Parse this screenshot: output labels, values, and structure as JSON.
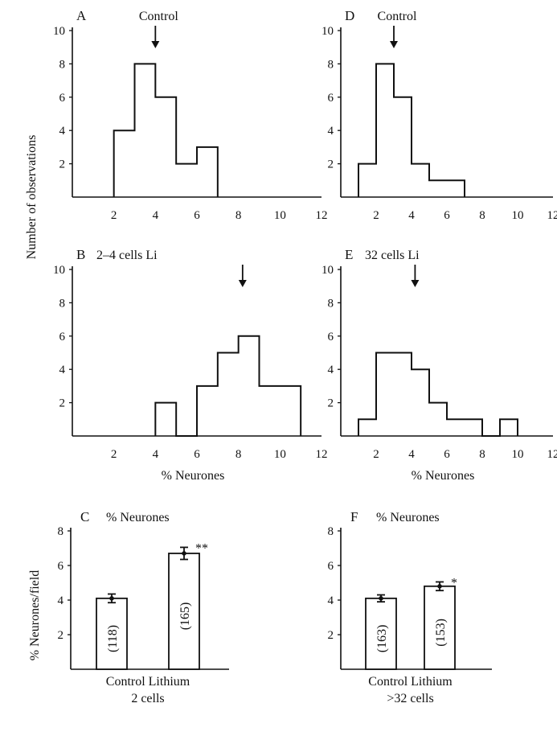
{
  "shared": {
    "hist_ylabel": "Number of observations",
    "bar_ylabel": "% Neurones/field"
  },
  "chart_data": [
    {
      "id": "A",
      "type": "histogram",
      "letter": "A",
      "title": "Control",
      "xlabel": "",
      "ylabel": "Number of observations",
      "xlim": [
        0,
        12
      ],
      "ylim": [
        0,
        10
      ],
      "xticks": [
        2,
        4,
        6,
        8,
        10,
        12
      ],
      "yticks": [
        2,
        4,
        6,
        8,
        10
      ],
      "bins": [
        [
          2,
          3,
          4
        ],
        [
          3,
          4,
          8
        ],
        [
          4,
          5,
          6
        ],
        [
          5,
          6,
          2
        ],
        [
          6,
          7,
          3
        ]
      ],
      "arrow_x": 4
    },
    {
      "id": "B",
      "type": "histogram",
      "letter": "B",
      "title": "2–4 cells Li",
      "xlabel": "% Neurones",
      "ylabel": "",
      "xlim": [
        0,
        12
      ],
      "ylim": [
        0,
        10
      ],
      "xticks": [
        2,
        4,
        6,
        8,
        10,
        12
      ],
      "yticks": [
        2,
        4,
        6,
        8,
        10
      ],
      "bins": [
        [
          4,
          5,
          2
        ],
        [
          5,
          6,
          0
        ],
        [
          6,
          7,
          3
        ],
        [
          7,
          8,
          5
        ],
        [
          8,
          9,
          6
        ],
        [
          9,
          11,
          3
        ]
      ],
      "arrow_x": 8.2
    },
    {
      "id": "D",
      "type": "histogram",
      "letter": "D",
      "title": "Control",
      "xlabel": "",
      "ylabel": "",
      "xlim": [
        0,
        12
      ],
      "ylim": [
        0,
        10
      ],
      "xticks": [
        2,
        4,
        6,
        8,
        10,
        12
      ],
      "yticks": [
        2,
        4,
        6,
        8,
        10
      ],
      "bins": [
        [
          1,
          2,
          2
        ],
        [
          2,
          3,
          8
        ],
        [
          3,
          4,
          6
        ],
        [
          4,
          5,
          2
        ],
        [
          5,
          7,
          1
        ]
      ],
      "arrow_x": 3
    },
    {
      "id": "E",
      "type": "histogram",
      "letter": "E",
      "title": "32 cells Li",
      "xlabel": "% Neurones",
      "ylabel": "",
      "xlim": [
        0,
        12
      ],
      "ylim": [
        0,
        10
      ],
      "xticks": [
        2,
        4,
        6,
        8,
        10,
        12
      ],
      "yticks": [
        2,
        4,
        6,
        8,
        10
      ],
      "bins": [
        [
          1,
          2,
          1
        ],
        [
          2,
          4,
          5
        ],
        [
          4,
          5,
          4
        ],
        [
          5,
          6,
          2
        ],
        [
          6,
          8,
          1
        ],
        [
          8,
          9,
          0
        ],
        [
          9,
          10,
          1
        ]
      ],
      "arrow_x": 4.2
    },
    {
      "id": "C",
      "type": "bar",
      "letter": "C",
      "title": "% Neurones",
      "ylabel": "% Neurones/field",
      "ylim": [
        0,
        8
      ],
      "yticks": [
        2,
        4,
        6,
        8
      ],
      "categories": [
        "Control",
        "Lithium"
      ],
      "values": [
        4.1,
        6.7
      ],
      "errors": [
        0.25,
        0.35
      ],
      "n_labels": [
        "(118)",
        "(165)"
      ],
      "significance": [
        "",
        "**"
      ],
      "xlabel_line1": "Control Lithium",
      "xlabel_line2": "2 cells"
    },
    {
      "id": "F",
      "type": "bar",
      "letter": "F",
      "title": "% Neurones",
      "ylabel": "",
      "ylim": [
        0,
        8
      ],
      "yticks": [
        2,
        4,
        6,
        8
      ],
      "categories": [
        "Control",
        "Lithium"
      ],
      "values": [
        4.1,
        4.8
      ],
      "errors": [
        0.2,
        0.25
      ],
      "n_labels": [
        "(163)",
        "(153)"
      ],
      "significance": [
        "",
        "*"
      ],
      "xlabel_line1": "Control Lithium",
      "xlabel_line2": ">32 cells"
    }
  ]
}
